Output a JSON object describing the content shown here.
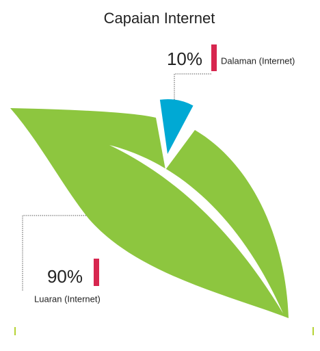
{
  "chart_data": {
    "type": "pie",
    "title": "Capaian Internet",
    "categories": [
      "Luaran (Internet)",
      "Dalaman (Internet)"
    ],
    "values": [
      90,
      10
    ],
    "value_labels": [
      "90%",
      "10%"
    ],
    "colors": [
      "#8dc63f",
      "#00a9d4"
    ],
    "label_color": "#d7264f"
  }
}
